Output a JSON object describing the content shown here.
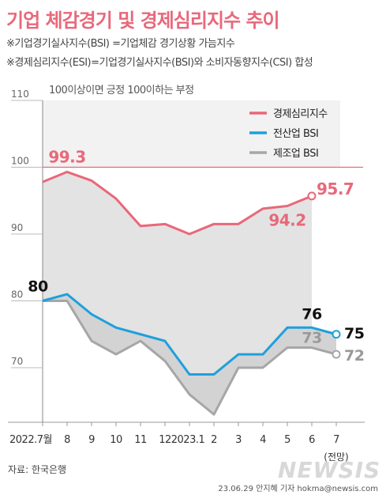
{
  "title": "기업 체감경기 및 경제심리지수 추이",
  "notes": [
    "※기업경기실사지수(BSI) =기업체감 경기상황 가늠지수",
    "※경제심리지수(ESI)=기업경기실사지수(BSI)와 소비자동향지수(CSI) 합성"
  ],
  "source": "자료: 한국은행",
  "credit": "23.06.29 안지혜 기자  hokma@newsis.com",
  "watermark": "NEWSIS",
  "chart_data": {
    "type": "line",
    "subtitle": "100이상이면 긍정 100이하는 부정",
    "categories": [
      "2022.7월",
      "8",
      "9",
      "10",
      "11",
      "12",
      "2023.1",
      "2",
      "3",
      "4",
      "5",
      "6",
      "7"
    ],
    "category_note": "(전망)",
    "ylim": [
      60,
      110
    ],
    "yticks": [
      70,
      80,
      90,
      100,
      110
    ],
    "reference_line": 100,
    "grid": false,
    "legend_position": "top-right",
    "series": [
      {
        "name": "경제심리지수",
        "color": "#e8687a",
        "values": [
          97.8,
          99.3,
          98.0,
          95.3,
          91.2,
          91.5,
          90.0,
          91.5,
          91.5,
          93.8,
          94.2,
          95.7,
          null
        ]
      },
      {
        "name": "전산업 BSI",
        "color": "#1ea0dc",
        "values": [
          80,
          81,
          78,
          76,
          75,
          74,
          69,
          69,
          72,
          72,
          76,
          76,
          75
        ]
      },
      {
        "name": "제조업 BSI",
        "color": "#a6a6a6",
        "values": [
          80,
          80,
          74,
          72,
          74,
          71,
          66,
          63,
          70,
          70,
          73,
          73,
          72
        ]
      }
    ],
    "annotations": [
      {
        "series": 0,
        "index": 1,
        "text": "99.3"
      },
      {
        "series": 0,
        "index": 10,
        "text": "94.2"
      },
      {
        "series": 0,
        "index": 11,
        "text": "95.7"
      },
      {
        "series": 1,
        "index": 0,
        "text": "80"
      },
      {
        "series": 1,
        "index": 11,
        "text": "76"
      },
      {
        "series": 1,
        "index": 12,
        "text": "75"
      },
      {
        "series": 2,
        "index": 11,
        "text": "73"
      },
      {
        "series": 2,
        "index": 12,
        "text": "72"
      }
    ]
  }
}
